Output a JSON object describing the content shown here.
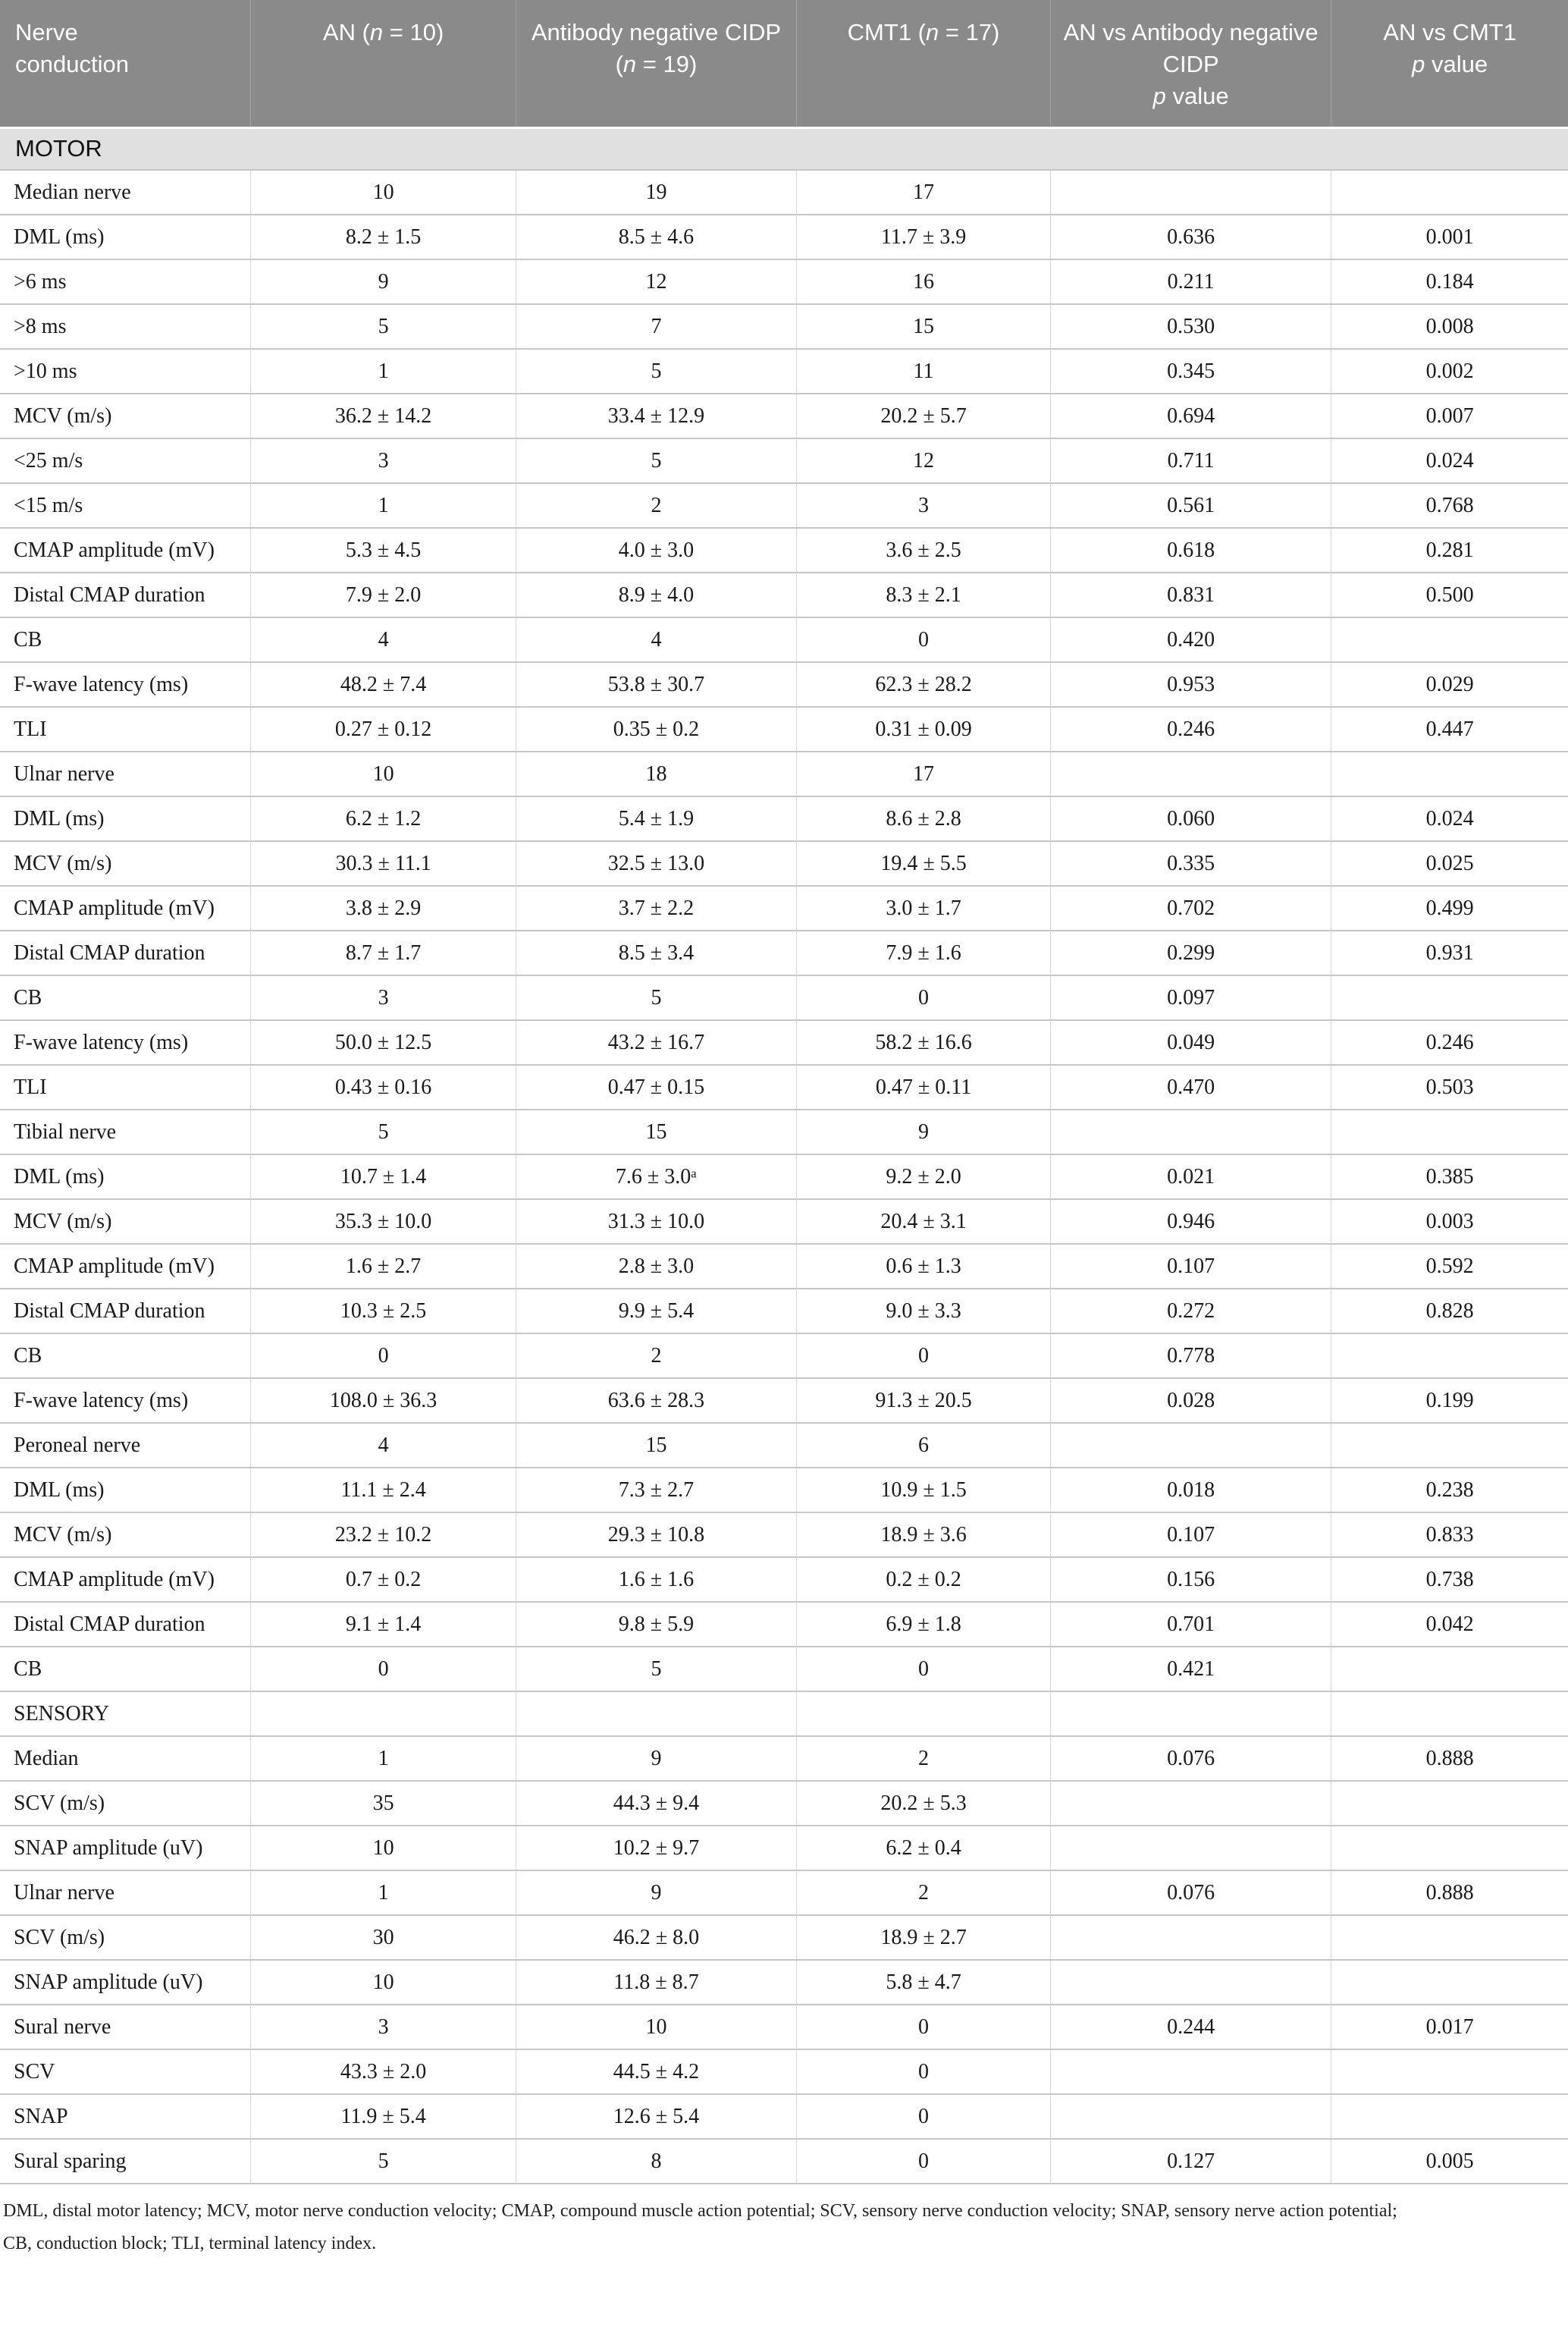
{
  "table": {
    "header": {
      "col0": {
        "text": "Nerve conduction"
      },
      "col1": {
        "pre": "AN (",
        "italic": "n",
        "post": " = 10)"
      },
      "col2": {
        "pre": "Antibody negative CIDP (",
        "italic": "n",
        "post": " = 19)"
      },
      "col3": {
        "pre": "CMT1 (",
        "italic": "n",
        "post": " = 17)"
      },
      "col4": {
        "line1": "AN vs Antibody negative CIDP",
        "italic": "p",
        "post": " value"
      },
      "col5": {
        "line1": "AN vs CMT1",
        "italic": "p",
        "post": " value"
      }
    },
    "rows": [
      {
        "section": "MOTOR"
      },
      {
        "cells": [
          "Median nerve",
          "10",
          "19",
          "17",
          "",
          ""
        ]
      },
      {
        "cells": [
          "DML (ms)",
          "8.2 ± 1.5",
          "8.5 ± 4.6",
          "11.7 ± 3.9",
          "0.636",
          "0.001"
        ]
      },
      {
        "cells": [
          ">6 ms",
          "9",
          "12",
          "16",
          "0.211",
          "0.184"
        ]
      },
      {
        "cells": [
          ">8 ms",
          "5",
          "7",
          "15",
          "0.530",
          "0.008"
        ]
      },
      {
        "cells": [
          ">10 ms",
          "1",
          "5",
          "11",
          "0.345",
          "0.002"
        ]
      },
      {
        "cells": [
          "MCV (m/s)",
          "36.2 ± 14.2",
          "33.4 ± 12.9",
          "20.2 ± 5.7",
          "0.694",
          "0.007"
        ]
      },
      {
        "cells": [
          "<25 m/s",
          "3",
          "5",
          "12",
          "0.711",
          "0.024"
        ]
      },
      {
        "cells": [
          "<15 m/s",
          "1",
          "2",
          "3",
          "0.561",
          "0.768"
        ]
      },
      {
        "cells": [
          "CMAP amplitude (mV)",
          "5.3 ± 4.5",
          "4.0 ± 3.0",
          "3.6 ± 2.5",
          "0.618",
          "0.281"
        ]
      },
      {
        "cells": [
          "Distal CMAP duration",
          "7.9 ± 2.0",
          "8.9 ± 4.0",
          "8.3 ± 2.1",
          "0.831",
          "0.500"
        ]
      },
      {
        "cells": [
          "CB",
          "4",
          "4",
          "0",
          "0.420",
          ""
        ]
      },
      {
        "cells": [
          "F-wave latency (ms)",
          "48.2 ± 7.4",
          "53.8 ± 30.7",
          "62.3 ± 28.2",
          "0.953",
          "0.029"
        ]
      },
      {
        "cells": [
          "TLI",
          "0.27 ± 0.12",
          "0.35 ± 0.2",
          "0.31 ± 0.09",
          "0.246",
          "0.447"
        ]
      },
      {
        "cells": [
          "Ulnar nerve",
          "10",
          "18",
          "17",
          "",
          ""
        ]
      },
      {
        "cells": [
          "DML (ms)",
          "6.2 ± 1.2",
          "5.4 ± 1.9",
          "8.6 ± 2.8",
          "0.060",
          "0.024"
        ]
      },
      {
        "cells": [
          "MCV (m/s)",
          "30.3 ± 11.1",
          "32.5 ± 13.0",
          "19.4 ± 5.5",
          "0.335",
          "0.025"
        ]
      },
      {
        "cells": [
          "CMAP amplitude (mV)",
          "3.8 ± 2.9",
          "3.7 ± 2.2",
          "3.0 ± 1.7",
          "0.702",
          "0.499"
        ]
      },
      {
        "cells": [
          "Distal CMAP duration",
          "8.7 ± 1.7",
          "8.5 ± 3.4",
          "7.9 ± 1.6",
          "0.299",
          "0.931"
        ]
      },
      {
        "cells": [
          "CB",
          "3",
          "5",
          "0",
          "0.097",
          ""
        ]
      },
      {
        "cells": [
          "F-wave latency (ms)",
          "50.0 ± 12.5",
          "43.2 ± 16.7",
          "58.2 ± 16.6",
          "0.049",
          "0.246"
        ]
      },
      {
        "cells": [
          "TLI",
          "0.43 ± 0.16",
          "0.47 ± 0.15",
          "0.47 ± 0.11",
          "0.470",
          "0.503"
        ]
      },
      {
        "cells": [
          "Tibial nerve",
          "5",
          "15",
          "9",
          "",
          ""
        ]
      },
      {
        "cells": [
          "DML (ms)",
          "10.7 ± 1.4",
          "7.6 ± 3.0ᵃ",
          "9.2 ± 2.0",
          "0.021",
          "0.385"
        ]
      },
      {
        "cells": [
          "MCV (m/s)",
          "35.3 ± 10.0",
          "31.3 ± 10.0",
          "20.4 ± 3.1",
          "0.946",
          "0.003"
        ]
      },
      {
        "cells": [
          "CMAP amplitude (mV)",
          "1.6 ± 2.7",
          "2.8 ± 3.0",
          "0.6 ± 1.3",
          "0.107",
          "0.592"
        ]
      },
      {
        "cells": [
          "Distal CMAP duration",
          "10.3 ± 2.5",
          "9.9 ± 5.4",
          "9.0 ± 3.3",
          "0.272",
          "0.828"
        ]
      },
      {
        "cells": [
          "CB",
          "0",
          "2",
          "0",
          "0.778",
          ""
        ]
      },
      {
        "cells": [
          "F-wave latency (ms)",
          "108.0 ± 36.3",
          "63.6 ± 28.3",
          "91.3 ± 20.5",
          "0.028",
          "0.199"
        ]
      },
      {
        "cells": [
          "Peroneal nerve",
          "4",
          "15",
          "6",
          "",
          ""
        ]
      },
      {
        "cells": [
          "DML (ms)",
          "11.1 ± 2.4",
          "7.3 ± 2.7",
          "10.9 ± 1.5",
          "0.018",
          "0.238"
        ]
      },
      {
        "cells": [
          "MCV (m/s)",
          "23.2 ± 10.2",
          "29.3 ± 10.8",
          "18.9 ± 3.6",
          "0.107",
          "0.833"
        ]
      },
      {
        "cells": [
          "CMAP amplitude (mV)",
          "0.7 ± 0.2",
          "1.6 ± 1.6",
          "0.2 ± 0.2",
          "0.156",
          "0.738"
        ]
      },
      {
        "cells": [
          "Distal CMAP duration",
          "9.1 ± 1.4",
          "9.8 ± 5.9",
          "6.9 ± 1.8",
          "0.701",
          "0.042"
        ]
      },
      {
        "cells": [
          "CB",
          "0",
          "5",
          "0",
          "0.421",
          ""
        ]
      },
      {
        "cells": [
          "SENSORY",
          "",
          "",
          "",
          "",
          ""
        ]
      },
      {
        "cells": [
          "Median",
          "1",
          "9",
          "2",
          "0.076",
          "0.888"
        ]
      },
      {
        "cells": [
          "SCV (m/s)",
          "35",
          "44.3 ± 9.4",
          "20.2 ± 5.3",
          "",
          ""
        ]
      },
      {
        "cells": [
          "SNAP amplitude (uV)",
          "10",
          "10.2 ± 9.7",
          "6.2 ± 0.4",
          "",
          ""
        ]
      },
      {
        "cells": [
          "Ulnar nerve",
          "1",
          "9",
          "2",
          "0.076",
          "0.888"
        ]
      },
      {
        "cells": [
          "SCV (m/s)",
          "30",
          "46.2 ± 8.0",
          "18.9 ± 2.7",
          "",
          ""
        ]
      },
      {
        "cells": [
          "SNAP amplitude (uV)",
          "10",
          "11.8 ± 8.7",
          "5.8 ± 4.7",
          "",
          ""
        ]
      },
      {
        "cells": [
          "Sural nerve",
          "3",
          "10",
          "0",
          "0.244",
          "0.017"
        ]
      },
      {
        "cells": [
          "SCV",
          "43.3 ± 2.0",
          "44.5 ± 4.2",
          "0",
          "",
          ""
        ]
      },
      {
        "cells": [
          "SNAP",
          "11.9 ± 5.4",
          "12.6 ± 5.4",
          "0",
          "",
          ""
        ]
      },
      {
        "cells": [
          "Sural sparing",
          "5",
          "8",
          "0",
          "0.127",
          "0.005"
        ]
      }
    ]
  },
  "footnote": {
    "line1": "DML, distal motor latency; MCV, motor nerve conduction velocity; CMAP, compound muscle action potential; SCV, sensory nerve conduction velocity; SNAP, sensory nerve action potential;",
    "line2": "CB, conduction block; TLI, terminal latency index."
  },
  "colors": {
    "header_background": "#8a8a8a",
    "header_text": "#ffffff",
    "section_band_background": "#e0e0e0",
    "row_border": "#c7c7c7",
    "body_text": "#1a1a1a"
  }
}
